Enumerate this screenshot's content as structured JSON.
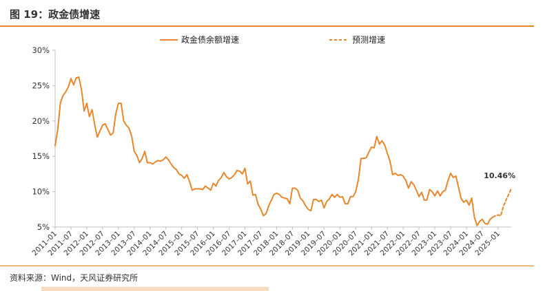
{
  "figure": {
    "title": "图 19：政金债增速",
    "source": "资料来源：Wind，天风证券研究所"
  },
  "chart_data": {
    "type": "line",
    "xlabel": "",
    "ylabel": "",
    "ylim": [
      5,
      30
    ],
    "yticks": [
      "5%",
      "10%",
      "15%",
      "20%",
      "25%",
      "30%"
    ],
    "xlim": [
      "2011-01",
      "2025-06"
    ],
    "xticks": [
      "2011–01",
      "2011–07",
      "2012–01",
      "2012–07",
      "2013–01",
      "2013–07",
      "2014–01",
      "2014–07",
      "2015–01",
      "2015–07",
      "2016–01",
      "2016–07",
      "2017–01",
      "2017–07",
      "2018–01",
      "2018–07",
      "2019–01",
      "2019–07",
      "2020–01",
      "2020–07",
      "2021–01",
      "2021–07",
      "2022–01",
      "2022–07",
      "2023–01",
      "2023–07",
      "2024–01",
      "2024–07",
      "2025–01"
    ],
    "grid": false,
    "legend": "top",
    "colors": {
      "line": "#e8862b",
      "axis": "#bfbfbf"
    },
    "annotation": "10.46%",
    "series": [
      {
        "name": "政金债余额增速",
        "style": "solid",
        "x": [
          "2011-01",
          "2011-02",
          "2011-03",
          "2011-04",
          "2011-05",
          "2011-06",
          "2011-07",
          "2011-08",
          "2011-09",
          "2011-10",
          "2011-11",
          "2011-12",
          "2012-01",
          "2012-02",
          "2012-03",
          "2012-04",
          "2012-05",
          "2012-06",
          "2012-07",
          "2012-08",
          "2012-09",
          "2012-10",
          "2012-11",
          "2012-12",
          "2013-01",
          "2013-02",
          "2013-03",
          "2013-04",
          "2013-05",
          "2013-06",
          "2013-07",
          "2013-08",
          "2013-09",
          "2013-10",
          "2013-11",
          "2013-12",
          "2014-01",
          "2014-02",
          "2014-03",
          "2014-04",
          "2014-05",
          "2014-06",
          "2014-07",
          "2014-08",
          "2014-09",
          "2014-10",
          "2014-11",
          "2014-12",
          "2015-01",
          "2015-02",
          "2015-03",
          "2015-04",
          "2015-05",
          "2015-06",
          "2015-07",
          "2015-08",
          "2015-09",
          "2015-10",
          "2015-11",
          "2015-12",
          "2016-01",
          "2016-02",
          "2016-03",
          "2016-04",
          "2016-05",
          "2016-06",
          "2016-07",
          "2016-08",
          "2016-09",
          "2016-10",
          "2016-11",
          "2016-12",
          "2017-01",
          "2017-02",
          "2017-03",
          "2017-04",
          "2017-05",
          "2017-06",
          "2017-07",
          "2017-08",
          "2017-09",
          "2017-10",
          "2017-11",
          "2017-12",
          "2018-01",
          "2018-02",
          "2018-03",
          "2018-04",
          "2018-05",
          "2018-06",
          "2018-07",
          "2018-08",
          "2018-09",
          "2018-10",
          "2018-11",
          "2018-12",
          "2019-01",
          "2019-02",
          "2019-03",
          "2019-04",
          "2019-05",
          "2019-06",
          "2019-07",
          "2019-08",
          "2019-09",
          "2019-10",
          "2019-11",
          "2019-12",
          "2020-01",
          "2020-02",
          "2020-03",
          "2020-04",
          "2020-05",
          "2020-06",
          "2020-07",
          "2020-08",
          "2020-09",
          "2020-10",
          "2020-11",
          "2020-12",
          "2021-01",
          "2021-02",
          "2021-03",
          "2021-04",
          "2021-05",
          "2021-06",
          "2021-07",
          "2021-08",
          "2021-09",
          "2021-10",
          "2021-11",
          "2021-12",
          "2022-01",
          "2022-02",
          "2022-03",
          "2022-04",
          "2022-05",
          "2022-06",
          "2022-07",
          "2022-08",
          "2022-09",
          "2022-10",
          "2022-11",
          "2022-12",
          "2023-01",
          "2023-02",
          "2023-03",
          "2023-04",
          "2023-05",
          "2023-06",
          "2023-07",
          "2023-08",
          "2023-09",
          "2023-10",
          "2023-11",
          "2023-12",
          "2024-01",
          "2024-02",
          "2024-03",
          "2024-04",
          "2024-05",
          "2024-06",
          "2024-07",
          "2024-08",
          "2024-09",
          "2024-10",
          "2024-11"
        ],
        "values": [
          16.5,
          18.8,
          22.6,
          23.6,
          24.1,
          24.8,
          26.0,
          25.1,
          26.1,
          26.2,
          24.4,
          21.4,
          22.5,
          20.6,
          21.6,
          19.5,
          17.7,
          18.6,
          19.4,
          19.6,
          18.8,
          18.0,
          18.3,
          21.0,
          22.5,
          22.5,
          20.0,
          19.4,
          19.0,
          17.9,
          15.7,
          15.1,
          14.1,
          14.7,
          15.7,
          14.1,
          14.1,
          13.9,
          14.2,
          14.4,
          14.3,
          14.5,
          14.9,
          14.5,
          13.9,
          13.4,
          13.1,
          12.5,
          12.3,
          11.9,
          12.4,
          11.4,
          10.2,
          10.4,
          10.4,
          10.4,
          10.3,
          10.8,
          10.5,
          10.2,
          11.2,
          10.8,
          11.6,
          12.0,
          12.7,
          12.1,
          11.8,
          12.0,
          12.4,
          13.0,
          12.9,
          12.5,
          13.3,
          11.1,
          11.5,
          9.5,
          9.6,
          8.2,
          7.5,
          6.6,
          6.9,
          8.0,
          8.8,
          9.6,
          9.8,
          9.6,
          9.2,
          9.1,
          9.0,
          8.3,
          10.5,
          10.5,
          10.2,
          9.1,
          8.7,
          8.0,
          7.5,
          7.3,
          8.9,
          8.9,
          8.6,
          8.8,
          7.7,
          8.6,
          9.0,
          9.6,
          9.2,
          9.6,
          9.2,
          9.3,
          8.3,
          8.3,
          9.3,
          9.3,
          10.0,
          11.7,
          14.7,
          14.7,
          14.8,
          15.6,
          16.3,
          16.2,
          17.8,
          16.7,
          17.2,
          16.6,
          15.4,
          14.3,
          12.4,
          12.6,
          12.3,
          12.4,
          12.2,
          11.6,
          10.5,
          11.4,
          11.0,
          10.2,
          9.3,
          9.9,
          8.8,
          8.8,
          10.3,
          10.0,
          9.4,
          10.1,
          9.4,
          10.0,
          10.2,
          11.6,
          12.6,
          12.0,
          12.2,
          10.6,
          9.0,
          8.5,
          8.8,
          8.1,
          9.1,
          6.4,
          5.2,
          5.8,
          6.1,
          5.5,
          5.4,
          6.1,
          6.4
        ]
      },
      {
        "name": "预测增速",
        "style": "dashed",
        "x": [
          "2024-11",
          "2024-12",
          "2025-01",
          "2025-02",
          "2025-03",
          "2025-04",
          "2025-05",
          "2025-06"
        ],
        "values": [
          6.4,
          6.6,
          6.7,
          6.6,
          7.9,
          8.8,
          9.6,
          10.46
        ]
      }
    ]
  }
}
